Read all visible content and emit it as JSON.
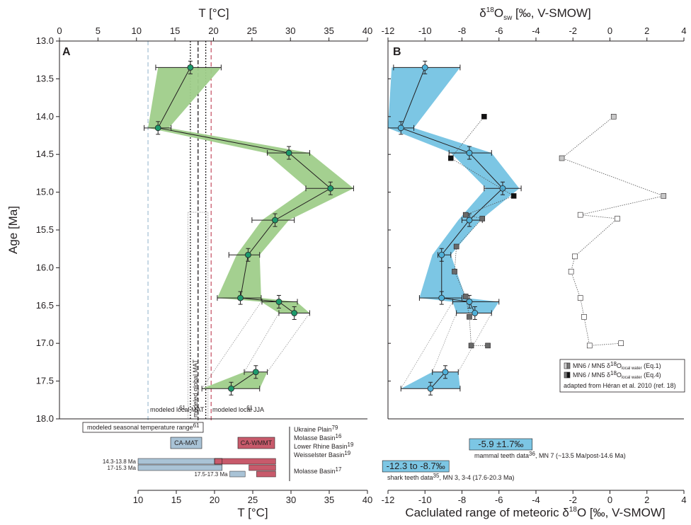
{
  "chart_data": [
    {
      "panel": "A",
      "type": "line",
      "title": "",
      "xlabel": "T [°C]",
      "ylabel": "Age [Ma]",
      "xlim": [
        0,
        40
      ],
      "ylim": [
        13.0,
        18.0
      ],
      "x_ticks": [
        "0",
        "5",
        "10",
        "15",
        "20",
        "25",
        "30",
        "35",
        "40"
      ],
      "y_ticks": [
        "13.0",
        "13.5",
        "14.0",
        "14.5",
        "15.0",
        "15.5",
        "16.0",
        "16.5",
        "17.0",
        "17.5",
        "18.0"
      ],
      "series": [
        {
          "points": [
            {
              "age": 13.35,
              "t": 17.0,
              "min": 12.8,
              "max": 21.0,
              "lo": 12.5,
              "hi": 21.0
            },
            {
              "age": 14.15,
              "t": 12.8,
              "min": 11.5,
              "max": 14.2,
              "lo": 11.0,
              "hi": 14.5
            },
            {
              "age": 14.48,
              "t": 29.8,
              "min": 26.8,
              "max": 32.5,
              "lo": 27.0,
              "hi": 32.5
            },
            {
              "age": 14.95,
              "t": 35.2,
              "min": 32.2,
              "max": 38.2,
              "lo": 32.0,
              "hi": 38.2
            },
            {
              "age": 15.37,
              "t": 28.0,
              "min": 26.3,
              "max": 29.8,
              "lo": 25.0,
              "hi": 30.5
            },
            {
              "age": 15.83,
              "t": 24.5,
              "min": 23.0,
              "max": 26.0,
              "lo": 22.0,
              "hi": 26.0
            },
            {
              "age": 16.4,
              "t": 23.5,
              "min": 20.5,
              "max": 26.2,
              "lo": 20.5,
              "hi": 26.2
            },
            {
              "age": 16.45,
              "t": 28.5,
              "min": 26.2,
              "max": 30.8,
              "lo": 26.3,
              "hi": 30.9
            },
            {
              "age": 16.6,
              "t": 30.5,
              "min": 28.5,
              "max": 32.5,
              "lo": 28.5,
              "hi": 32.5
            },
            {
              "age": 17.38,
              "t": 25.5,
              "min": 24.0,
              "max": 27.0,
              "lo": 24.0,
              "hi": 27.0
            },
            {
              "age": 17.6,
              "t": 22.3,
              "min": 18.5,
              "max": 26.0,
              "lo": 18.5,
              "hi": 26.0
            }
          ]
        }
      ],
      "reference_lines": [
        {
          "t": 11.5,
          "color": "#a9c3d6",
          "dash": "6,4",
          "label": "modeled local MAT",
          "ref": "61"
        },
        {
          "t": 17.0,
          "color": "#231f20",
          "dash": "2,2",
          "label": ""
        },
        {
          "t": 18.0,
          "color": "#231f20",
          "dash": "6,3",
          "label": "modeled global MAT",
          "ref": "62,65"
        },
        {
          "t": 19.0,
          "color": "#231f20",
          "dash": "2,2",
          "label": ""
        },
        {
          "t": 19.7,
          "color": "#c85a6b",
          "dash": "6,4",
          "label": "modeled local JJA",
          "ref": "61"
        }
      ],
      "seasonal_box_label": "modeled seasonal temperature range",
      "seasonal_box_ref": "61"
    },
    {
      "panel": "B",
      "type": "line",
      "title": "",
      "xlabel": "δ18Osw [‰, V-SMOW]",
      "xlabel_parts": {
        "base": "δ",
        "sup": "18",
        "mid": "O",
        "sub": "sw",
        "tail": " [‰, V-SMOW]"
      },
      "xlim": [
        -12,
        4
      ],
      "x_ticks": [
        "-12",
        "-10",
        "-8",
        "-6",
        "-4",
        "-2",
        "0",
        "2",
        "4"
      ],
      "series": [
        {
          "points": [
            {
              "age": 13.35,
              "d": -10.0,
              "min": -11.8,
              "max": -8.1,
              "lo": -11.7,
              "hi": -8.1
            },
            {
              "age": 14.15,
              "d": -11.3,
              "min": -12.0,
              "max": -10.6,
              "lo": -12.0,
              "hi": -10.6
            },
            {
              "age": 14.48,
              "d": -7.6,
              "min": -8.6,
              "max": -6.4,
              "lo": -8.7,
              "hi": -6.4
            },
            {
              "age": 14.95,
              "d": -5.8,
              "min": -6.7,
              "max": -4.9,
              "lo": -6.8,
              "hi": -4.8
            },
            {
              "age": 15.37,
              "d": -7.6,
              "min": -8.2,
              "max": -7.0,
              "lo": -8.0,
              "hi": -6.9
            },
            {
              "age": 15.83,
              "d": -9.1,
              "min": -9.6,
              "max": -8.6,
              "lo": -9.3,
              "hi": -8.6
            },
            {
              "age": 16.4,
              "d": -9.1,
              "min": -10.3,
              "max": -7.8,
              "lo": -10.3,
              "hi": -8.0
            },
            {
              "age": 16.45,
              "d": -7.6,
              "min": -8.5,
              "max": -6.0,
              "lo": -8.5,
              "hi": -6.0
            },
            {
              "age": 16.6,
              "d": -7.3,
              "min": -8.3,
              "max": -6.4,
              "lo": -8.3,
              "hi": -6.4
            },
            {
              "age": 17.38,
              "d": -8.9,
              "min": -9.6,
              "max": -8.2,
              "lo": -9.6,
              "hi": -8.2
            },
            {
              "age": 17.6,
              "d": -9.7,
              "min": -11.3,
              "max": -8.1,
              "lo": -11.3,
              "hi": -8.1
            }
          ]
        }
      ],
      "mammal_eq1": [
        {
          "age": 14.0,
          "d": 0.2
        },
        {
          "age": 14.55,
          "d": -2.6
        },
        {
          "age": 15.05,
          "d": 2.9
        },
        {
          "age": 15.3,
          "d": -1.6
        },
        {
          "age": 15.35,
          "d": 0.4
        },
        {
          "age": 15.85,
          "d": -1.9
        },
        {
          "age": 16.05,
          "d": -2.1
        },
        {
          "age": 16.4,
          "d": -1.6
        },
        {
          "age": 16.65,
          "d": -1.4
        },
        {
          "age": 17.03,
          "d": -1.1
        },
        {
          "age": 17.0,
          "d": 0.6
        }
      ],
      "mammal_eq4": [
        {
          "age": 14.0,
          "d": -6.8
        },
        {
          "age": 14.55,
          "d": -8.6
        },
        {
          "age": 15.05,
          "d": -5.2
        },
        {
          "age": 15.3,
          "d": -7.8
        },
        {
          "age": 15.35,
          "d": -6.9
        },
        {
          "age": 15.72,
          "d": -8.3
        },
        {
          "age": 16.05,
          "d": -8.4
        },
        {
          "age": 16.38,
          "d": -7.8
        },
        {
          "age": 16.65,
          "d": -7.6
        },
        {
          "age": 17.03,
          "d": -7.5
        },
        {
          "age": 17.03,
          "d": -6.6
        }
      ],
      "legend": {
        "eq1_prefix": "MN6 / MN5 δ",
        "eq1_sup": "18",
        "eq1_mid": "O",
        "eq1_sub": "local water",
        "eq1_suffix": " (Eq.1)",
        "eq4_prefix": "MN6 / MN5 δ",
        "eq4_sup": "18",
        "eq4_mid": "O",
        "eq4_sub": "local water",
        "eq4_suffix": " (Eq.4)",
        "source": "adapted from Héran et al. 2010 (ref. 18)",
        "placement": "lower-right"
      }
    },
    {
      "panel": "A-bottom",
      "type": "bar",
      "xlabel": "T [°C]",
      "xlim": [
        10,
        40
      ],
      "x_ticks": [
        "10",
        "15",
        "20",
        "25",
        "30",
        "35",
        "40"
      ],
      "ca_mat_label": "CA-MAT",
      "ca_wmmt_label": "CA-WMMT",
      "ca_mat_color": "#a9c3d6",
      "ca_wmmt_color": "#c85a6b",
      "basins_label_1": [
        "Ukraine Plain",
        "Molasse Basin",
        "Lower Rhine Basin",
        "Weisselster Basin"
      ],
      "basins_refs_1": [
        "79",
        "16",
        "19",
        "19"
      ],
      "basins_label_2": "Molasse Basin",
      "basins_ref_2": "17",
      "bars": [
        {
          "period": "14.3-13.8 Ma",
          "mat": [
            10,
            21
          ],
          "wmmt": [
            20,
            28
          ]
        },
        {
          "period": "17-15.3 Ma",
          "mat": [
            10,
            21
          ],
          "wmmt": [
            24.5,
            28
          ]
        },
        {
          "period": "17.5-17.3 Ma",
          "mat": [
            22,
            24
          ],
          "wmmt": [
            25.5,
            28
          ]
        }
      ]
    },
    {
      "panel": "B-bottom",
      "type": "bar",
      "xlabel_prefix": "Caclulated range of meteoric δ",
      "xlabel_sup": "18",
      "xlabel_suffix": "O [‰, V-SMOW]",
      "xlim": [
        -12,
        4
      ],
      "x_ticks": [
        "-12",
        "-10",
        "-8",
        "-6",
        "-4",
        "-2",
        "0",
        "2",
        "4"
      ],
      "ranges": [
        {
          "label": "-5.9 ±1.7‰",
          "min": -7.6,
          "max": -4.2,
          "note": "mammal teeth data",
          "ref": "36",
          "note_tail": ", MN 7 (~13.5 Ma/post-14.6 Ma)"
        },
        {
          "label": "-12.3 to -8.7‰",
          "min": -12.3,
          "max": -8.7,
          "note": "shark teeth data",
          "ref": "35",
          "note_tail": ", MN 3, 3-4 (17.6-20.3 Ma)"
        }
      ],
      "range_color": "#7cc6e4"
    }
  ]
}
